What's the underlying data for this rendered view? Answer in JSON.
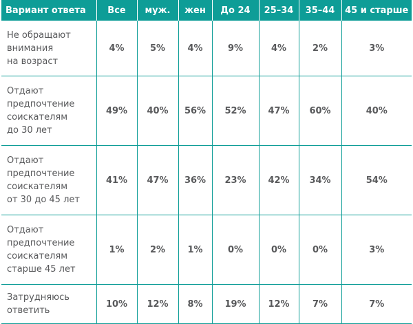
{
  "table": {
    "headers": [
      "Вариант ответа",
      "Все",
      "муж.",
      "жен",
      "До 24",
      "25–34",
      "35–44",
      "45 и старше"
    ],
    "rows": [
      {
        "label": "Не обращают\nвнимания\nна возраст",
        "values": [
          "4%",
          "5%",
          "4%",
          "9%",
          "4%",
          "2%",
          "3%"
        ]
      },
      {
        "label": "Отдают\nпредпочтение\nсоискателям\nдо 30 лет",
        "values": [
          "49%",
          "40%",
          "56%",
          "52%",
          "47%",
          "60%",
          "40%"
        ]
      },
      {
        "label": "Отдают\nпредпочтение\nсоискателям\nот 30 до 45 лет",
        "values": [
          "41%",
          "47%",
          "36%",
          "23%",
          "42%",
          "34%",
          "54%"
        ]
      },
      {
        "label": "Отдают\nпредпочтение\nсоискателям\nстарше 45 лет",
        "values": [
          "1%",
          "2%",
          "1%",
          "0%",
          "0%",
          "0%",
          "3%"
        ]
      },
      {
        "label": "Затрудняюсь\nответить",
        "values": [
          "10%",
          "12%",
          "8%",
          "19%",
          "12%",
          "7%",
          "7%"
        ]
      }
    ]
  }
}
